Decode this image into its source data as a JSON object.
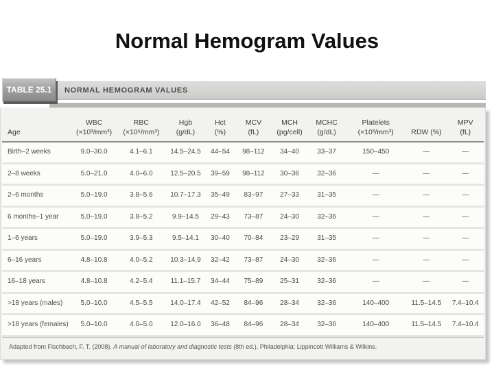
{
  "slide": {
    "title": "Normal Hemogram Values"
  },
  "table": {
    "tab_label": "TABLE 25.1",
    "header_title": "NORMAL HEMOGRAM VALUES",
    "colors": {
      "tab_face": "#9a9a9a",
      "header_bar": "#d2d2d0",
      "panel_background": "#f2f2f0",
      "row_background": "#fcfcfb",
      "text": "#4a4a48"
    },
    "columns": [
      {
        "label": "Age",
        "unit": ""
      },
      {
        "label": "WBC",
        "unit": "(×10³/mm³)"
      },
      {
        "label": "RBC",
        "unit": "(×10⁶/mm³)"
      },
      {
        "label": "Hgb",
        "unit": "(g/dL)"
      },
      {
        "label": "Hct",
        "unit": "(%)"
      },
      {
        "label": "MCV",
        "unit": "(fL)"
      },
      {
        "label": "MCH",
        "unit": "(pg/cell)"
      },
      {
        "label": "MCHC",
        "unit": "(g/dL)"
      },
      {
        "label": "Platelets",
        "unit": "(×10³/mm³)"
      },
      {
        "label": "RDW (%)",
        "unit": ""
      },
      {
        "label": "MPV",
        "unit": "(fL)"
      }
    ],
    "rows": [
      [
        "Birth–2 weeks",
        "9.0–30.0",
        "4.1–6.1",
        "14.5–24.5",
        "44–54",
        "98–112",
        "34–40",
        "33–37",
        "150–450",
        "—",
        "—"
      ],
      [
        "2–8 weeks",
        "5.0–21.0",
        "4.0–6.0",
        "12.5–20.5",
        "39–59",
        "98–112",
        "30–36",
        "32–36",
        "—",
        "—",
        "—"
      ],
      [
        "2–6 months",
        "5.0–19.0",
        "3.8–5.6",
        "10.7–17.3",
        "35–49",
        "83–97",
        "27–33",
        "31–35",
        "—",
        "—",
        "—"
      ],
      [
        "6 months–1 year",
        "5.0–19.0",
        "3.8–5.2",
        "9.9–14.5",
        "29–43",
        "73–87",
        "24–30",
        "32–36",
        "—",
        "—",
        "—"
      ],
      [
        "1–6 years",
        "5.0–19.0",
        "3.9–5.3",
        "9.5–14.1",
        "30–40",
        "70–84",
        "23–29",
        "31–35",
        "—",
        "—",
        "—"
      ],
      [
        "6–16 years",
        "4.8–10.8",
        "4.0–5.2",
        "10.3–14.9",
        "32–42",
        "73–87",
        "24–30",
        "32–36",
        "—",
        "—",
        "—"
      ],
      [
        "16–18 years",
        "4.8–10.8",
        "4.2–5.4",
        "11.1–15.7",
        "34–44",
        "75–89",
        "25–31",
        "32–36",
        "—",
        "—",
        "—"
      ],
      [
        ">18 years (males)",
        "5.0–10.0",
        "4.5–5.5",
        "14.0–17.4",
        "42–52",
        "84–96",
        "28–34",
        "32–36",
        "140–400",
        "11.5–14.5",
        "7.4–10.4"
      ],
      [
        ">18 years (females)",
        "5.0–10.0",
        "4.0–5.0",
        "12.0–16.0",
        "36–48",
        "84–96",
        "28–34",
        "32–36",
        "140–400",
        "11.5–14.5",
        "7.4–10.4"
      ]
    ],
    "footnote": {
      "prefix": "Adapted from Fischbach, F. T. (2008). ",
      "book_title": "A manual of laboratory and diagnostic tests",
      "suffix": " (8th ed.). Philadelphia: Lippincott Williams & Wilkins."
    }
  }
}
